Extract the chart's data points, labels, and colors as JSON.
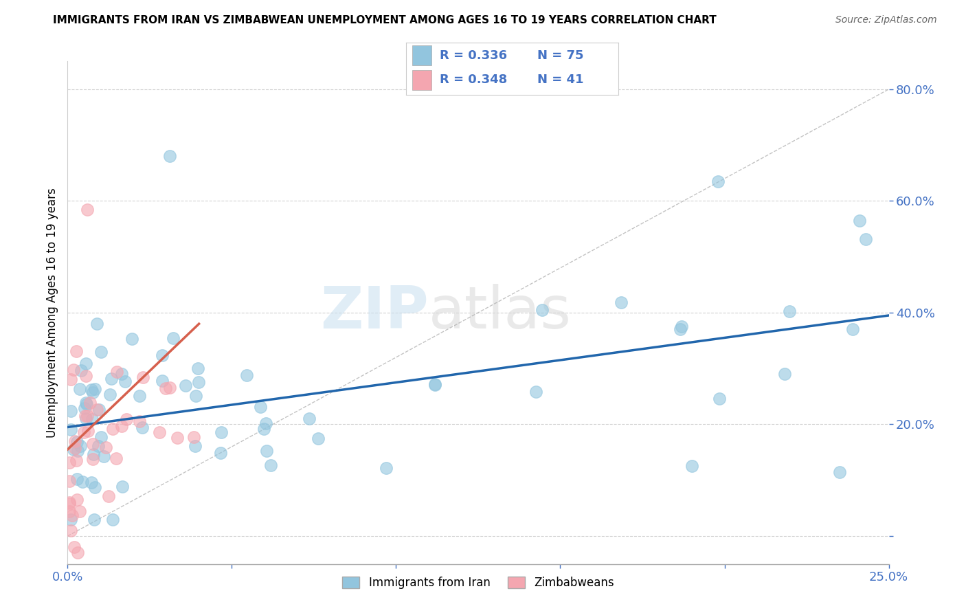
{
  "title": "IMMIGRANTS FROM IRAN VS ZIMBABWEAN UNEMPLOYMENT AMONG AGES 16 TO 19 YEARS CORRELATION CHART",
  "source": "Source: ZipAtlas.com",
  "ylabel": "Unemployment Among Ages 16 to 19 years",
  "xlim": [
    0.0,
    0.25
  ],
  "ylim": [
    -0.05,
    0.85
  ],
  "legend_r1": "R = 0.336",
  "legend_n1": "N = 75",
  "legend_r2": "R = 0.348",
  "legend_n2": "N = 41",
  "color_blue": "#92c5de",
  "color_pink": "#f4a6b0",
  "color_line_blue": "#2166ac",
  "color_line_pink": "#d6604d",
  "watermark_zip": "ZIP",
  "watermark_atlas": "atlas",
  "ytick_positions": [
    0.0,
    0.2,
    0.4,
    0.6,
    0.8
  ],
  "ytick_labels": [
    "",
    "20.0%",
    "40.0%",
    "60.0%",
    "80.0%"
  ],
  "xtick_positions": [
    0.0,
    0.05,
    0.1,
    0.15,
    0.2,
    0.25
  ],
  "xtick_labels": [
    "0.0%",
    "",
    "",
    "",
    "",
    "25.0%"
  ]
}
